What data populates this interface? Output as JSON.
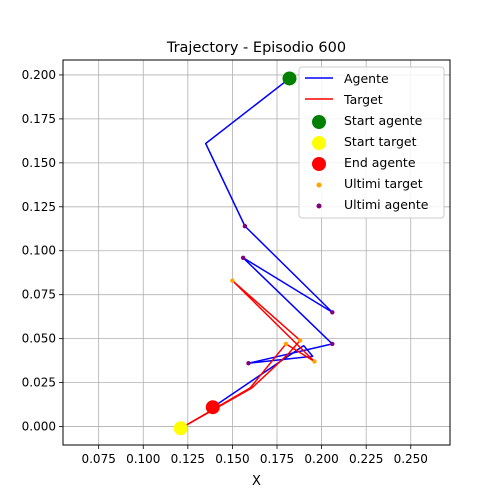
{
  "chart_data": {
    "type": "line",
    "title": "Trajectory - Episodio 600",
    "xlabel": "X",
    "ylabel": "",
    "xlim": [
      0.055,
      0.272
    ],
    "ylim": [
      -0.0105,
      0.2085
    ],
    "xticks": [
      "0.075",
      "0.100",
      "0.125",
      "0.150",
      "0.175",
      "0.200",
      "0.225",
      "0.250"
    ],
    "xtick_values": [
      0.075,
      0.1,
      0.125,
      0.15,
      0.175,
      0.2,
      0.225,
      0.25
    ],
    "yticks": [
      "0.000",
      "0.025",
      "0.050",
      "0.075",
      "0.100",
      "0.125",
      "0.150",
      "0.175",
      "0.200"
    ],
    "ytick_values": [
      0.0,
      0.025,
      0.05,
      0.075,
      0.1,
      0.125,
      0.15,
      0.175,
      0.2
    ],
    "grid": true,
    "legend_position": "top-right",
    "series": [
      {
        "name": "Agente",
        "kind": "line",
        "color": "#0000ff",
        "x": [
          0.182,
          0.135,
          0.157,
          0.206,
          0.156,
          0.206,
          0.159,
          0.195,
          0.19,
          0.139
        ],
        "y": [
          0.198,
          0.161,
          0.114,
          0.065,
          0.096,
          0.047,
          0.036,
          0.04,
          0.046,
          0.011
        ]
      },
      {
        "name": "Target",
        "kind": "line",
        "color": "#ff0000",
        "x": [
          0.121,
          0.16,
          0.18,
          0.196,
          0.15,
          0.188,
          0.181,
          0.161,
          0.121
        ],
        "y": [
          -0.001,
          0.022,
          0.047,
          0.037,
          0.083,
          0.049,
          0.041,
          0.022,
          -0.001
        ]
      },
      {
        "name": "Start agente",
        "kind": "point",
        "color": "#008000",
        "x": [
          0.182
        ],
        "y": [
          0.198
        ]
      },
      {
        "name": "Start target",
        "kind": "point",
        "color": "#ffff00",
        "x": [
          0.121
        ],
        "y": [
          -0.001
        ]
      },
      {
        "name": "End agente",
        "kind": "point",
        "color": "#ff0000",
        "x": [
          0.139
        ],
        "y": [
          0.011
        ]
      },
      {
        "name": "Ultimi target",
        "kind": "scatter",
        "color": "#ffa500",
        "x": [
          0.15,
          0.18,
          0.196,
          0.188
        ],
        "y": [
          0.083,
          0.047,
          0.037,
          0.049
        ]
      },
      {
        "name": "Ultimi agente",
        "kind": "scatter",
        "color": "#800080",
        "x": [
          0.157,
          0.156,
          0.206,
          0.206,
          0.159
        ],
        "y": [
          0.114,
          0.096,
          0.065,
          0.047,
          0.036
        ]
      }
    ]
  }
}
